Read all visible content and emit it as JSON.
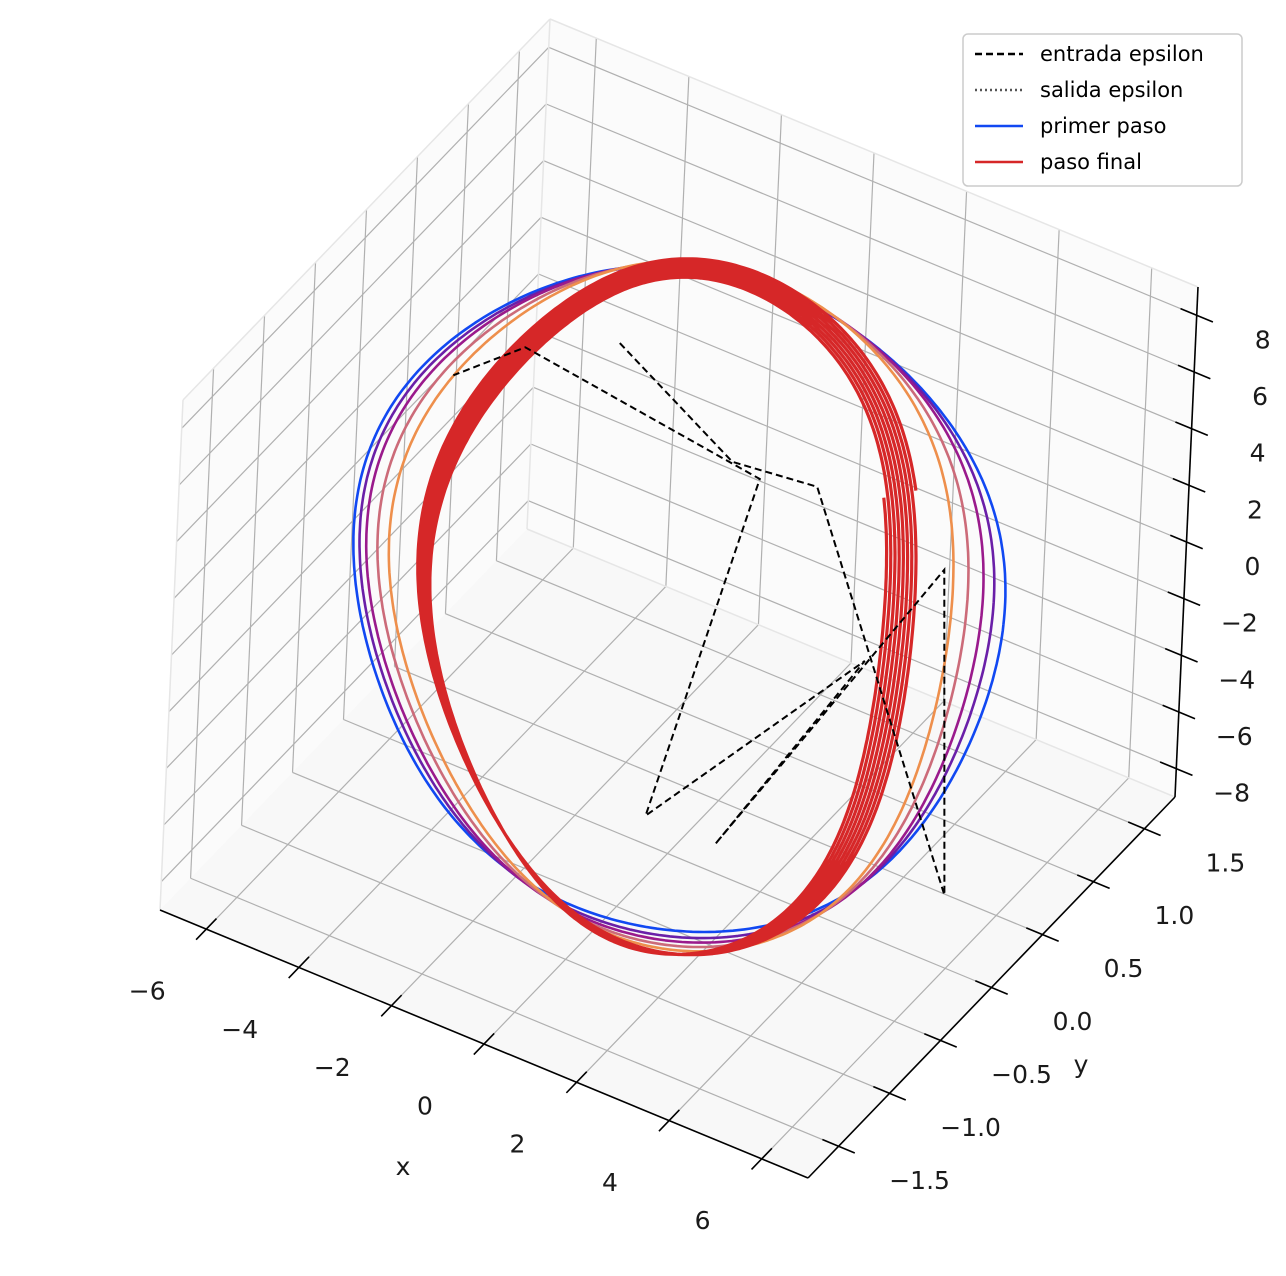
{
  "chart_data": {
    "type": "line",
    "projection": "3d",
    "title": "",
    "xlabel": "x",
    "ylabel": "y",
    "zlabel": "",
    "x_ticks": [
      -6,
      -4,
      -2,
      0,
      2,
      4,
      6
    ],
    "y_ticks": [
      -1.5,
      -1.0,
      -0.5,
      0.0,
      0.5,
      1.0,
      1.5
    ],
    "z_ticks": [
      -8,
      -6,
      -4,
      -2,
      0,
      2,
      4,
      6,
      8
    ],
    "x_tick_labels": [
      "−6",
      "−4",
      "−2",
      "0",
      "2",
      "4",
      "6"
    ],
    "y_tick_labels": [
      "−1.5",
      "−1.0",
      "−0.5",
      "0.0",
      "0.5",
      "1.0",
      "1.5"
    ],
    "z_tick_labels": [
      "−8",
      "−6",
      "−4",
      "−2",
      "0",
      "2",
      "4",
      "6",
      "8"
    ],
    "xlim": [
      -7,
      7
    ],
    "ylim": [
      -1.8,
      1.8
    ],
    "zlim": [
      -9,
      9
    ],
    "grid": true,
    "legend_position": "top-right",
    "legend": [
      {
        "label": "entrada epsilon",
        "color": "#000000",
        "style": "dashed"
      },
      {
        "label": "salida epsilon",
        "color": "#555555",
        "style": "dotted"
      },
      {
        "label": "primer paso",
        "color": "#1148f2",
        "style": "solid"
      },
      {
        "label": "paso final",
        "color": "#d62728",
        "style": "solid"
      }
    ],
    "series": [
      {
        "name": "primer paso",
        "color": "#1148f2",
        "kind": "loop",
        "a": 6.3,
        "b": 8.0,
        "phase": 0.0,
        "zshift": 0.0,
        "turns": 1
      },
      {
        "color": "#6a1fa8",
        "kind": "loop",
        "a": 6.1,
        "b": 8.1,
        "phase": 0.05,
        "zshift": 0.1,
        "turns": 1
      },
      {
        "color": "#9a1a8c",
        "kind": "loop",
        "a": 5.9,
        "b": 8.2,
        "phase": 0.1,
        "zshift": 0.15,
        "turns": 1
      },
      {
        "color": "#cc6b79",
        "kind": "loop",
        "a": 5.6,
        "b": 8.3,
        "phase": 0.15,
        "zshift": 0.2,
        "turns": 1
      },
      {
        "color": "#ee8f4c",
        "kind": "loop",
        "a": 5.3,
        "b": 8.4,
        "phase": 0.2,
        "zshift": 0.25,
        "turns": 1
      },
      {
        "name": "paso final",
        "color": "#d62728",
        "kind": "spiral",
        "a": 4.6,
        "b": 8.5,
        "phase": 0.3,
        "zshift": 0.3,
        "turns": 8
      }
    ],
    "epsilon_path": [
      [
        -1.5,
        0.0,
        8.0
      ],
      [
        1.0,
        0.0,
        5.5
      ],
      [
        2.0,
        0.4,
        3.8
      ],
      [
        5.5,
        0.2,
        -7.5
      ],
      [
        5.6,
        0.0,
        4.8
      ],
      [
        1.0,
        0.0,
        -8.0
      ],
      [
        4.0,
        0.0,
        0.5
      ],
      [
        -0.5,
        0.0,
        -8.0
      ],
      [
        1.6,
        0.0,
        5.3
      ],
      [
        -3.5,
        0.0,
        6.5
      ],
      [
        -5.0,
        0.0,
        4.5
      ]
    ]
  }
}
